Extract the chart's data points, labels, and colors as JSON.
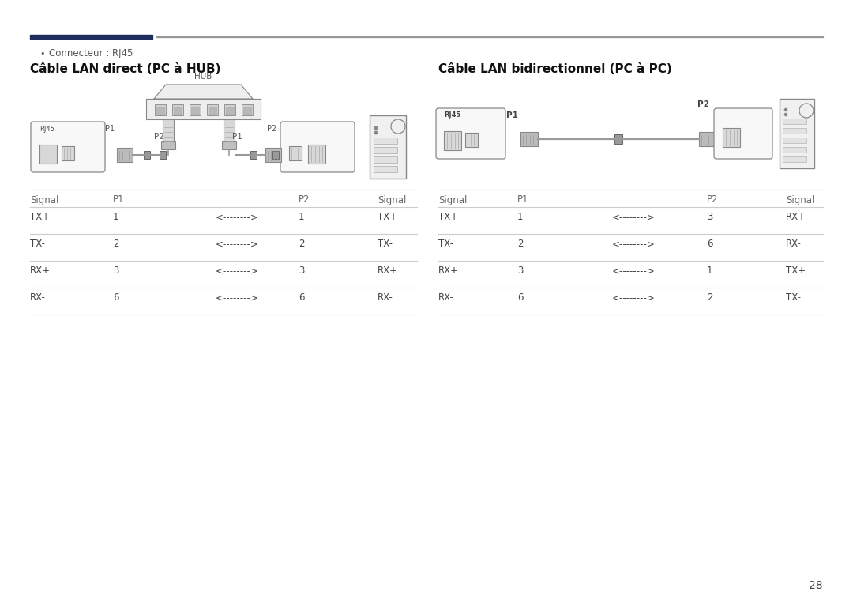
{
  "bg_color": "#ffffff",
  "page_number": "28",
  "header_bar_left_color": "#1c2d5e",
  "header_bar_right_color": "#999999",
  "bullet_text": "Connecteur : RJ45",
  "left_title": "Câble LAN direct (PC à HUB)",
  "right_title": "Câble LAN bidirectionnel (PC à PC)",
  "left_table_header": [
    "Signal",
    "P1",
    "",
    "P2",
    "Signal"
  ],
  "left_table_rows": [
    [
      "TX+",
      "1",
      "<-------->",
      "1",
      "TX+"
    ],
    [
      "TX-",
      "2",
      "<-------->",
      "2",
      "TX-"
    ],
    [
      "RX+",
      "3",
      "<-------->",
      "3",
      "RX+"
    ],
    [
      "RX-",
      "6",
      "<-------->",
      "6",
      "RX-"
    ]
  ],
  "right_table_header": [
    "Signal",
    "P1",
    "",
    "P2",
    "Signal"
  ],
  "right_table_rows": [
    [
      "TX+",
      "1",
      "<-------->",
      "3",
      "RX+"
    ],
    [
      "TX-",
      "2",
      "<-------->",
      "6",
      "RX-"
    ],
    [
      "RX+",
      "3",
      "<-------->",
      "1",
      "TX+"
    ],
    [
      "RX-",
      "6",
      "<-------->",
      "2",
      "TX-"
    ]
  ],
  "text_color": "#444444",
  "table_line_color": "#cccccc",
  "header_text_color": "#666666",
  "diagram_edge_color": "#888888",
  "diagram_fill_light": "#f4f4f4",
  "diagram_fill_port": "#d8d8d8",
  "diagram_fill_plug": "#bbbbbb",
  "diagram_cable_color": "#999999"
}
